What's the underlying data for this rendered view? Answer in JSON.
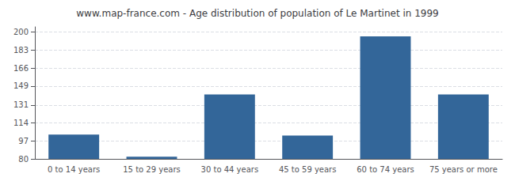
{
  "chart_data": {
    "type": "bar",
    "title": "www.map-france.com - Age distribution of population of Le Martinet in 1999",
    "categories": [
      "0 to 14 years",
      "15 to 29 years",
      "30 to 44 years",
      "45 to 59 years",
      "60 to 74 years",
      "75 years or more"
    ],
    "values": [
      103,
      82,
      141,
      102,
      196,
      141
    ],
    "color": "#336699",
    "ylim": [
      80,
      205
    ],
    "yticks": [
      80,
      97,
      114,
      131,
      149,
      166,
      183,
      200
    ],
    "grid": true
  }
}
